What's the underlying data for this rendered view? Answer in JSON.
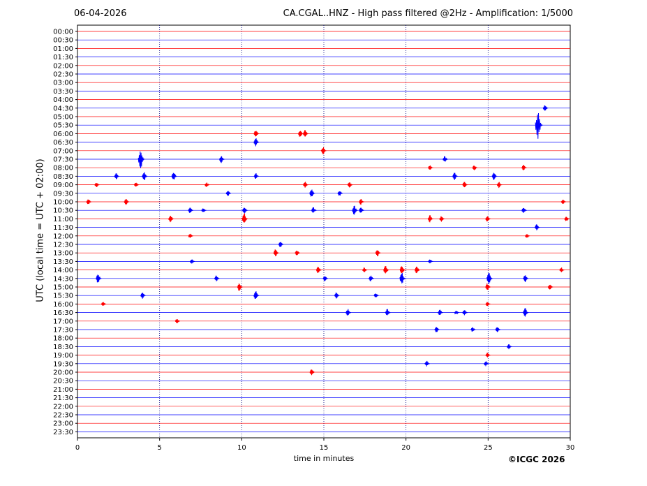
{
  "header": {
    "date": "06-04-2026",
    "title": "CA.CGAL..HNZ - High pass filtered @2Hz - Amplification: 1/5000"
  },
  "footer": {
    "copyright": "©ICGC 2026"
  },
  "colors": {
    "red": "#ff0000",
    "blue": "#0000ff",
    "grid": "#000080",
    "axis": "#000000"
  },
  "chart_data": {
    "type": "line",
    "title": "CA.CGAL..HNZ - High pass filtered @2Hz - Amplification: 1/5000",
    "xlabel": "time in minutes",
    "ylabel": "UTC (local time = UTC + 02:00)",
    "xlim": [
      0,
      30
    ],
    "x_ticks": [
      "0",
      "5",
      "10",
      "15",
      "20",
      "25",
      "30"
    ],
    "rows": [
      "00:00",
      "00:30",
      "01:00",
      "01:30",
      "02:00",
      "02:30",
      "03:00",
      "03:30",
      "04:00",
      "04:30",
      "05:00",
      "05:30",
      "06:00",
      "06:30",
      "07:00",
      "07:30",
      "08:00",
      "08:30",
      "09:00",
      "09:30",
      "10:00",
      "10:30",
      "11:00",
      "11:30",
      "12:00",
      "12:30",
      "13:00",
      "13:30",
      "14:00",
      "14:30",
      "15:00",
      "15:30",
      "16:00",
      "16:30",
      "17:00",
      "17:30",
      "18:00",
      "18:30",
      "19:00",
      "19:30",
      "20:00",
      "20:30",
      "21:00",
      "21:30",
      "22:00",
      "22:30",
      "23:00",
      "23:30"
    ],
    "row_colors": [
      "red",
      "blue"
    ],
    "events": [
      {
        "row": "04:30",
        "minute": 28.5,
        "amp": 0.5
      },
      {
        "row": "05:30",
        "minute": 28.1,
        "amp": 2.2
      },
      {
        "row": "06:00",
        "minute": 10.9,
        "amp": 0.6
      },
      {
        "row": "06:00",
        "minute": 13.6,
        "amp": 0.6
      },
      {
        "row": "06:00",
        "minute": 13.9,
        "amp": 0.6
      },
      {
        "row": "06:30",
        "minute": 10.9,
        "amp": 0.7
      },
      {
        "row": "07:00",
        "minute": 15.0,
        "amp": 0.6
      },
      {
        "row": "07:30",
        "minute": 3.9,
        "amp": 1.6
      },
      {
        "row": "07:30",
        "minute": 8.8,
        "amp": 0.6
      },
      {
        "row": "07:30",
        "minute": 22.4,
        "amp": 0.5
      },
      {
        "row": "08:00",
        "minute": 21.5,
        "amp": 0.4
      },
      {
        "row": "08:00",
        "minute": 24.2,
        "amp": 0.4
      },
      {
        "row": "08:00",
        "minute": 27.2,
        "amp": 0.5
      },
      {
        "row": "08:30",
        "minute": 2.4,
        "amp": 0.5
      },
      {
        "row": "08:30",
        "minute": 4.1,
        "amp": 0.8
      },
      {
        "row": "08:30",
        "minute": 5.9,
        "amp": 0.7
      },
      {
        "row": "08:30",
        "minute": 10.9,
        "amp": 0.5
      },
      {
        "row": "08:30",
        "minute": 23.0,
        "amp": 0.6
      },
      {
        "row": "08:30",
        "minute": 25.4,
        "amp": 0.6
      },
      {
        "row": "09:00",
        "minute": 1.2,
        "amp": 0.4
      },
      {
        "row": "09:00",
        "minute": 3.6,
        "amp": 0.4
      },
      {
        "row": "09:00",
        "minute": 7.9,
        "amp": 0.4
      },
      {
        "row": "09:00",
        "minute": 13.9,
        "amp": 0.5
      },
      {
        "row": "09:00",
        "minute": 16.6,
        "amp": 0.5
      },
      {
        "row": "09:00",
        "minute": 23.6,
        "amp": 0.5
      },
      {
        "row": "09:00",
        "minute": 25.7,
        "amp": 0.5
      },
      {
        "row": "09:30",
        "minute": 9.2,
        "amp": 0.5
      },
      {
        "row": "09:30",
        "minute": 14.3,
        "amp": 0.7
      },
      {
        "row": "09:30",
        "minute": 16.0,
        "amp": 0.5
      },
      {
        "row": "10:00",
        "minute": 0.7,
        "amp": 0.5
      },
      {
        "row": "10:00",
        "minute": 3.0,
        "amp": 0.5
      },
      {
        "row": "10:00",
        "minute": 17.3,
        "amp": 0.5
      },
      {
        "row": "10:00",
        "minute": 29.6,
        "amp": 0.4
      },
      {
        "row": "10:30",
        "minute": 6.9,
        "amp": 0.5
      },
      {
        "row": "10:30",
        "minute": 7.7,
        "amp": 0.4
      },
      {
        "row": "10:30",
        "minute": 10.2,
        "amp": 0.6
      },
      {
        "row": "10:30",
        "minute": 14.4,
        "amp": 0.5
      },
      {
        "row": "10:30",
        "minute": 16.9,
        "amp": 0.8
      },
      {
        "row": "10:30",
        "minute": 17.3,
        "amp": 0.5
      },
      {
        "row": "10:30",
        "minute": 27.2,
        "amp": 0.5
      },
      {
        "row": "11:00",
        "minute": 5.7,
        "amp": 0.6
      },
      {
        "row": "11:00",
        "minute": 10.2,
        "amp": 1.0
      },
      {
        "row": "11:00",
        "minute": 21.5,
        "amp": 0.6
      },
      {
        "row": "11:00",
        "minute": 22.2,
        "amp": 0.5
      },
      {
        "row": "11:00",
        "minute": 25.0,
        "amp": 0.5
      },
      {
        "row": "11:00",
        "minute": 29.8,
        "amp": 0.4
      },
      {
        "row": "11:30",
        "minute": 28.0,
        "amp": 0.5
      },
      {
        "row": "12:00",
        "minute": 6.9,
        "amp": 0.4
      },
      {
        "row": "12:00",
        "minute": 27.4,
        "amp": 0.3
      },
      {
        "row": "12:30",
        "minute": 12.4,
        "amp": 0.5
      },
      {
        "row": "13:00",
        "minute": 12.1,
        "amp": 0.6
      },
      {
        "row": "13:00",
        "minute": 13.4,
        "amp": 0.5
      },
      {
        "row": "13:00",
        "minute": 18.3,
        "amp": 0.6
      },
      {
        "row": "13:30",
        "minute": 7.0,
        "amp": 0.4
      },
      {
        "row": "13:30",
        "minute": 21.5,
        "amp": 0.4
      },
      {
        "row": "14:00",
        "minute": 14.7,
        "amp": 0.6
      },
      {
        "row": "14:00",
        "minute": 17.5,
        "amp": 0.4
      },
      {
        "row": "14:00",
        "minute": 18.8,
        "amp": 0.8
      },
      {
        "row": "14:00",
        "minute": 19.8,
        "amp": 0.8
      },
      {
        "row": "14:00",
        "minute": 20.7,
        "amp": 0.6
      },
      {
        "row": "14:00",
        "minute": 29.5,
        "amp": 0.4
      },
      {
        "row": "14:30",
        "minute": 1.3,
        "amp": 0.8
      },
      {
        "row": "14:30",
        "minute": 8.5,
        "amp": 0.5
      },
      {
        "row": "14:30",
        "minute": 15.1,
        "amp": 0.5
      },
      {
        "row": "14:30",
        "minute": 17.9,
        "amp": 0.5
      },
      {
        "row": "14:30",
        "minute": 19.8,
        "amp": 1.0
      },
      {
        "row": "14:30",
        "minute": 25.1,
        "amp": 1.0
      },
      {
        "row": "14:30",
        "minute": 27.3,
        "amp": 0.6
      },
      {
        "row": "15:00",
        "minute": 9.9,
        "amp": 0.7
      },
      {
        "row": "15:00",
        "minute": 25.0,
        "amp": 0.6
      },
      {
        "row": "15:00",
        "minute": 28.8,
        "amp": 0.5
      },
      {
        "row": "15:30",
        "minute": 4.0,
        "amp": 0.5
      },
      {
        "row": "15:30",
        "minute": 10.9,
        "amp": 0.8
      },
      {
        "row": "15:30",
        "minute": 15.8,
        "amp": 0.5
      },
      {
        "row": "15:30",
        "minute": 18.2,
        "amp": 0.4
      },
      {
        "row": "16:00",
        "minute": 1.6,
        "amp": 0.4
      },
      {
        "row": "16:00",
        "minute": 25.0,
        "amp": 0.4
      },
      {
        "row": "16:30",
        "minute": 16.5,
        "amp": 0.6
      },
      {
        "row": "16:30",
        "minute": 18.9,
        "amp": 0.6
      },
      {
        "row": "16:30",
        "minute": 22.1,
        "amp": 0.5
      },
      {
        "row": "16:30",
        "minute": 23.1,
        "amp": 0.3
      },
      {
        "row": "16:30",
        "minute": 23.6,
        "amp": 0.5
      },
      {
        "row": "16:30",
        "minute": 27.3,
        "amp": 0.8
      },
      {
        "row": "17:00",
        "minute": 6.1,
        "amp": 0.4
      },
      {
        "row": "17:30",
        "minute": 21.9,
        "amp": 0.5
      },
      {
        "row": "17:30",
        "minute": 24.1,
        "amp": 0.4
      },
      {
        "row": "17:30",
        "minute": 25.6,
        "amp": 0.5
      },
      {
        "row": "18:30",
        "minute": 26.3,
        "amp": 0.4
      },
      {
        "row": "19:00",
        "minute": 25.0,
        "amp": 0.4
      },
      {
        "row": "19:30",
        "minute": 21.3,
        "amp": 0.5
      },
      {
        "row": "19:30",
        "minute": 24.9,
        "amp": 0.4
      },
      {
        "row": "20:00",
        "minute": 14.3,
        "amp": 0.5
      }
    ]
  }
}
